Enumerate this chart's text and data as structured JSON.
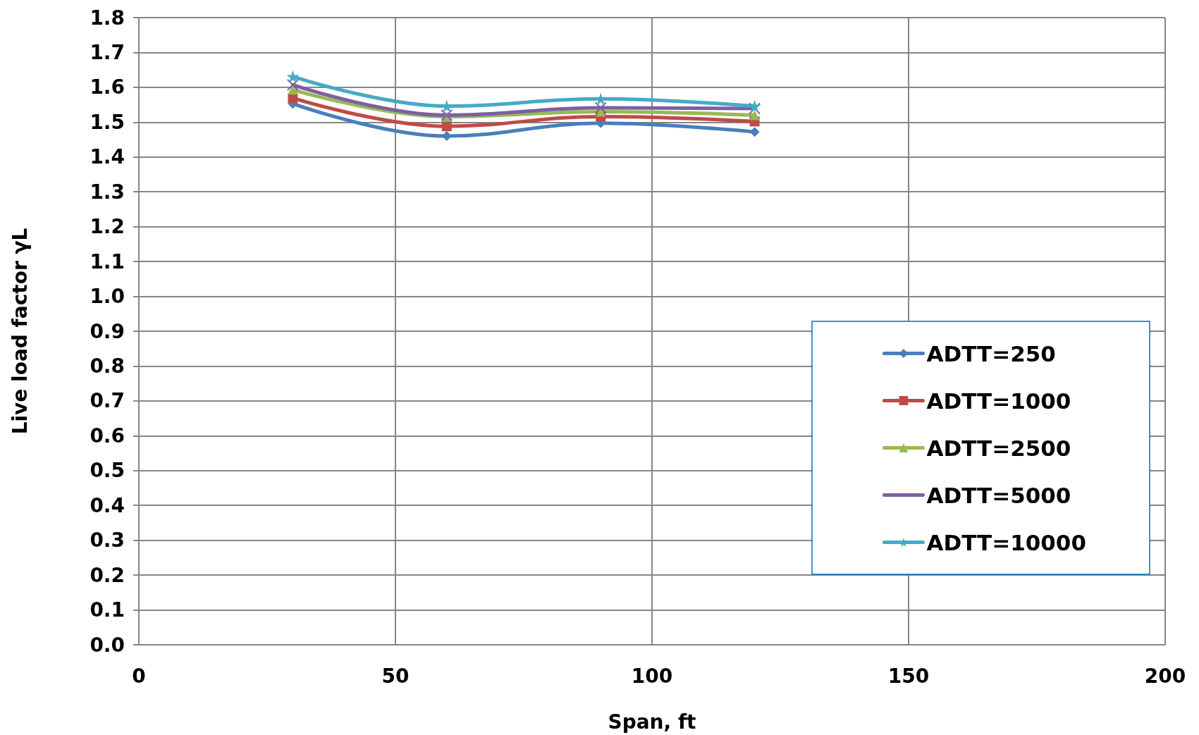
{
  "chart_data": {
    "type": "line",
    "xlabel": "Span, ft",
    "ylabel": "Live load factor γL",
    "x": [
      30,
      60,
      90,
      120
    ],
    "series": [
      {
        "name": "ADTT=250",
        "color": "#4a7ebb",
        "values": [
          1.553,
          1.46,
          1.497,
          1.472
        ],
        "marker": "diamond"
      },
      {
        "name": "ADTT=1000",
        "color": "#be4b48",
        "values": [
          1.569,
          1.488,
          1.516,
          1.502
        ],
        "marker": "square"
      },
      {
        "name": "ADTT=2500",
        "color": "#98b954",
        "values": [
          1.593,
          1.516,
          1.53,
          1.52
        ],
        "marker": "triangle"
      },
      {
        "name": "ADTT=5000",
        "color": "#7d60a0",
        "values": [
          1.607,
          1.52,
          1.541,
          1.539
        ],
        "marker": "cross"
      },
      {
        "name": "ADTT=10000",
        "color": "#46aac5",
        "values": [
          1.631,
          1.546,
          1.567,
          1.546
        ],
        "marker": "star"
      }
    ],
    "xlim": [
      0,
      200
    ],
    "xticks": [
      0,
      50,
      100,
      150,
      200
    ],
    "ylim": [
      0,
      1.8
    ],
    "yticks": [
      {
        "value": 0,
        "label": "0.0"
      },
      {
        "value": 0.1,
        "label": "0.1"
      },
      {
        "value": 0.2,
        "label": "0.2"
      },
      {
        "value": 0.3,
        "label": "0.3"
      },
      {
        "value": 0.4,
        "label": "0.4"
      },
      {
        "value": 0.5,
        "label": "0.5"
      },
      {
        "value": 0.6,
        "label": "0.6"
      },
      {
        "value": 0.7,
        "label": "0.7"
      },
      {
        "value": 0.8,
        "label": "0.8"
      },
      {
        "value": 0.9,
        "label": "0.9"
      },
      {
        "value": 1,
        "label": "1.0"
      },
      {
        "value": 1.1,
        "label": "1.1"
      },
      {
        "value": 1.2,
        "label": "1.2"
      },
      {
        "value": 1.3,
        "label": "1.3"
      },
      {
        "value": 1.4,
        "label": "1.4"
      },
      {
        "value": 1.5,
        "label": "1.5"
      },
      {
        "value": 1.6,
        "label": "1.6"
      },
      {
        "value": 1.7,
        "label": "1.7"
      },
      {
        "value": 1.8,
        "label": "1.8"
      }
    ],
    "grid": true,
    "legend": "bottom right",
    "line_style": "solid"
  }
}
